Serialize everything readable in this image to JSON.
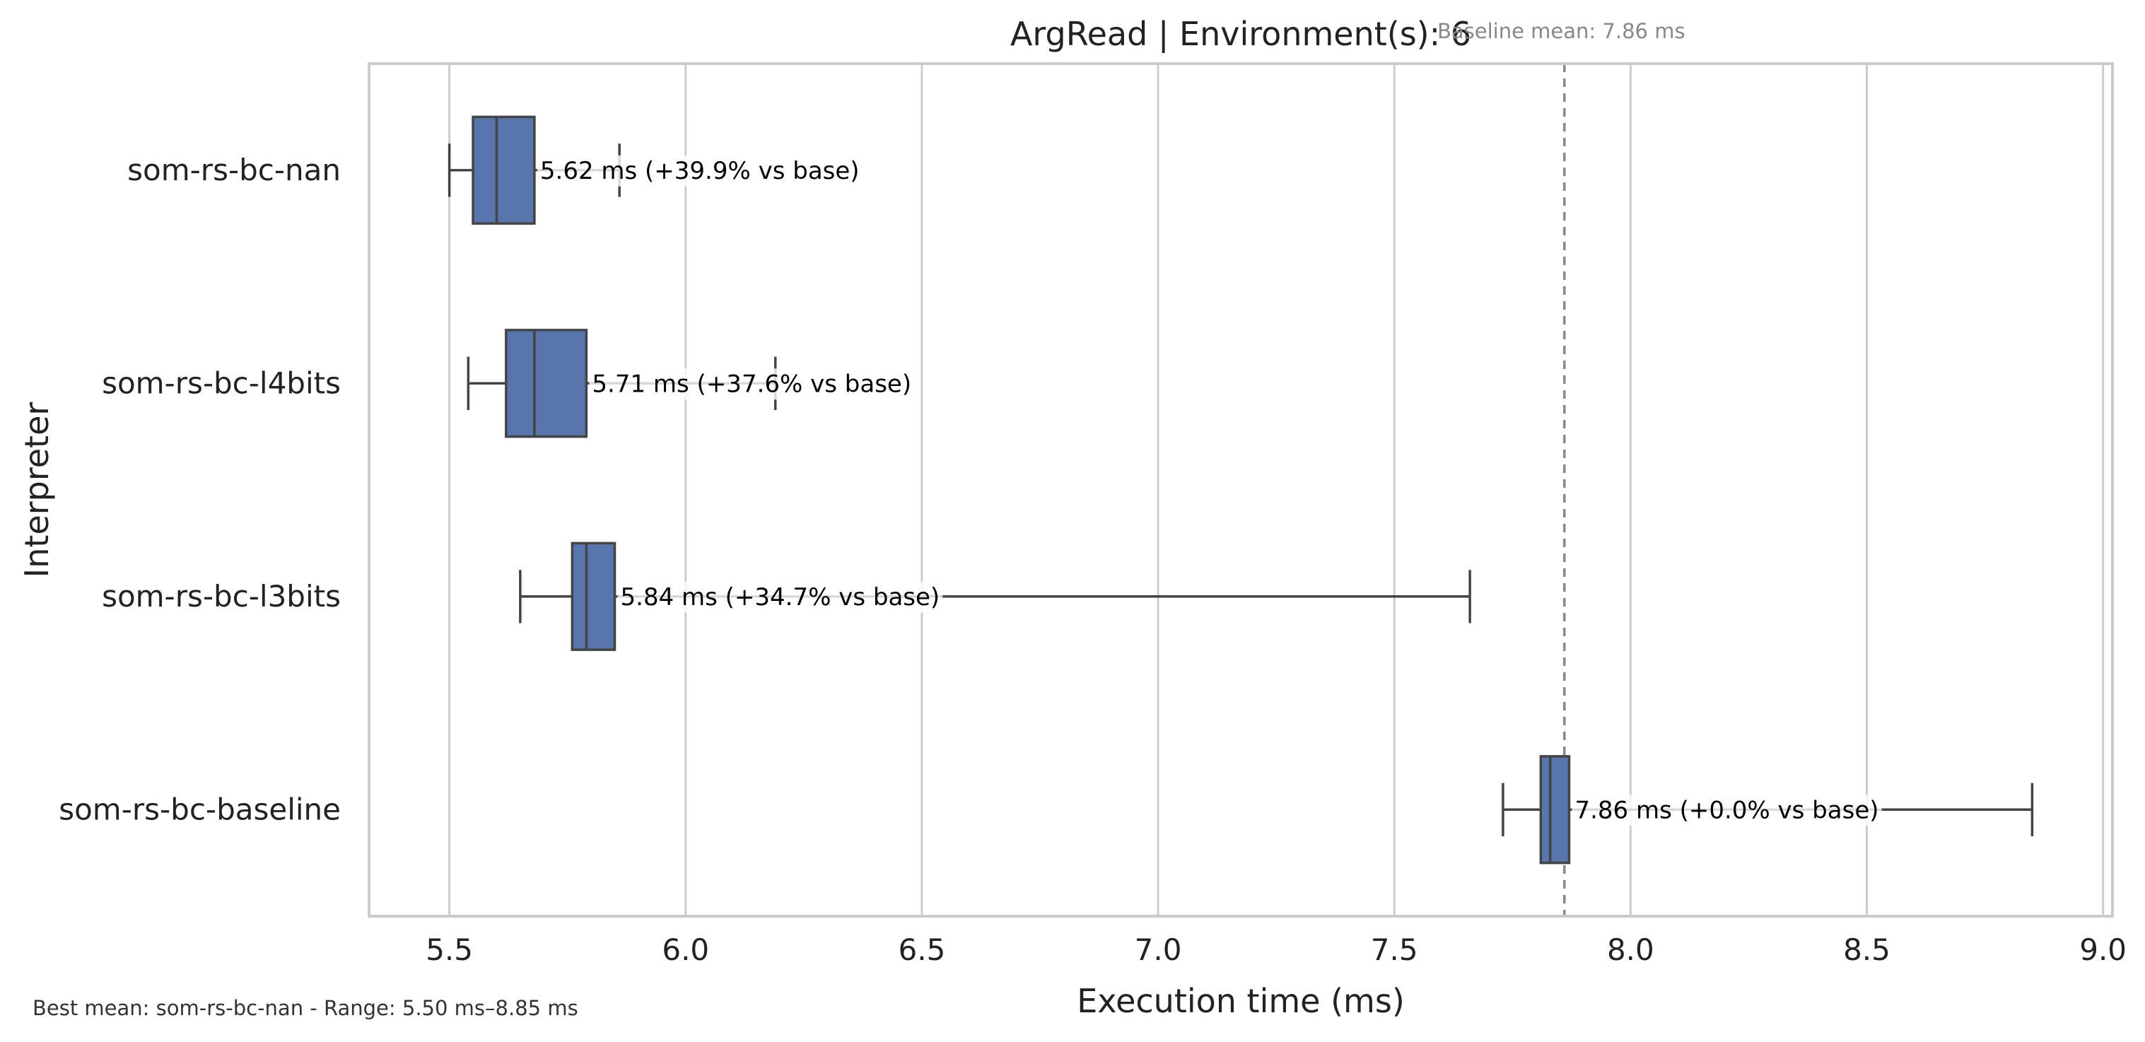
{
  "chart_data": {
    "type": "box",
    "title": "ArgRead | Environment(s): 6",
    "xlabel": "Execution time (ms)",
    "ylabel": "Interpreter",
    "xlim": [
      5.33,
      9.02
    ],
    "xticks": [
      5.5,
      6.0,
      6.5,
      7.0,
      7.5,
      8.0,
      8.5,
      9.0
    ],
    "xtick_labels": [
      "5.5",
      "6.0",
      "6.5",
      "7.0",
      "7.5",
      "8.0",
      "8.5",
      "9.0"
    ],
    "grid": "vertical",
    "box_color": "#5875ad",
    "edge_color": "#444444",
    "baseline": {
      "value": 7.86,
      "label": "Baseline mean: 7.86 ms",
      "color": "#888888"
    },
    "footer": "Best mean: som-rs-bc-nan - Range: 5.50 ms–8.85 ms",
    "categories": [
      "som-rs-bc-nan",
      "som-rs-bc-l4bits",
      "som-rs-bc-l3bits",
      "som-rs-bc-baseline"
    ],
    "boxes": [
      {
        "name": "som-rs-bc-nan",
        "whisker_low": 5.5,
        "q1": 5.55,
        "median": 5.6,
        "q3": 5.68,
        "whisker_high": 5.86,
        "mean_label": "5.62 ms  (+39.9% vs base)"
      },
      {
        "name": "som-rs-bc-l4bits",
        "whisker_low": 5.54,
        "q1": 5.62,
        "median": 5.68,
        "q3": 5.79,
        "whisker_high": 6.19,
        "mean_label": "5.71 ms  (+37.6% vs base)"
      },
      {
        "name": "som-rs-bc-l3bits",
        "whisker_low": 5.65,
        "q1": 5.76,
        "median": 5.79,
        "q3": 5.85,
        "whisker_high": 7.66,
        "mean_label": "5.84 ms  (+34.7% vs base)"
      },
      {
        "name": "som-rs-bc-baseline",
        "whisker_low": 7.73,
        "q1": 7.81,
        "median": 7.83,
        "q3": 7.87,
        "whisker_high": 8.85,
        "mean_label": "7.86 ms  (+0.0% vs base)"
      }
    ]
  }
}
